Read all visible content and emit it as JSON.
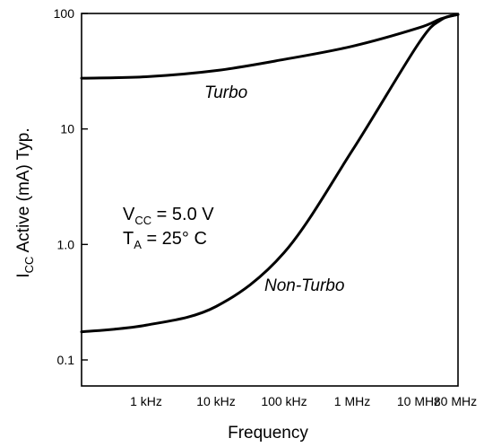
{
  "chart_data": {
    "type": "line",
    "xlabel": "Frequency",
    "ylabel": {
      "main": "I",
      "sub": "CC",
      "rest": " Active (mA) Typ."
    },
    "y_scale": "log",
    "ylim": [
      0.07,
      100
    ],
    "x_ticks": [
      "1 kHz",
      "10 kHz",
      "100 kHz",
      "1 MHz",
      "10 MHz",
      "80 MHz"
    ],
    "y_ticks": [
      "0.1",
      "1.0",
      "10",
      "100"
    ],
    "series": [
      {
        "name": "Turbo",
        "color": "#000000",
        "points": [
          {
            "x": "",
            "y": 27.5
          },
          {
            "x": "1 kHz",
            "y": 28.3
          },
          {
            "x": "10 kHz",
            "y": 32
          },
          {
            "x": "100 kHz",
            "y": 40
          },
          {
            "x": "1 MHz",
            "y": 52
          },
          {
            "x": "10 MHz",
            "y": 75
          },
          {
            "x": "",
            "y": 90
          },
          {
            "x": "80 MHz",
            "y": 98
          }
        ]
      },
      {
        "name": "Non-Turbo",
        "color": "#000000",
        "points": [
          {
            "x": "",
            "y": 0.175
          },
          {
            "x": "1 kHz",
            "y": 0.2
          },
          {
            "x": "10 kHz",
            "y": 0.29
          },
          {
            "x": "100 kHz",
            "y": 0.85
          },
          {
            "x": "1 MHz",
            "y": 6.5
          },
          {
            "x": "10 MHz",
            "y": 55
          },
          {
            "x": "",
            "y": 88
          },
          {
            "x": "80 MHz",
            "y": 98
          }
        ]
      }
    ],
    "annotation": {
      "line1": {
        "main": "V",
        "sub": "CC",
        "rest": " = 5.0 V"
      },
      "line2": {
        "main": "T",
        "sub": "A",
        "rest": "  = 25° C"
      }
    }
  }
}
